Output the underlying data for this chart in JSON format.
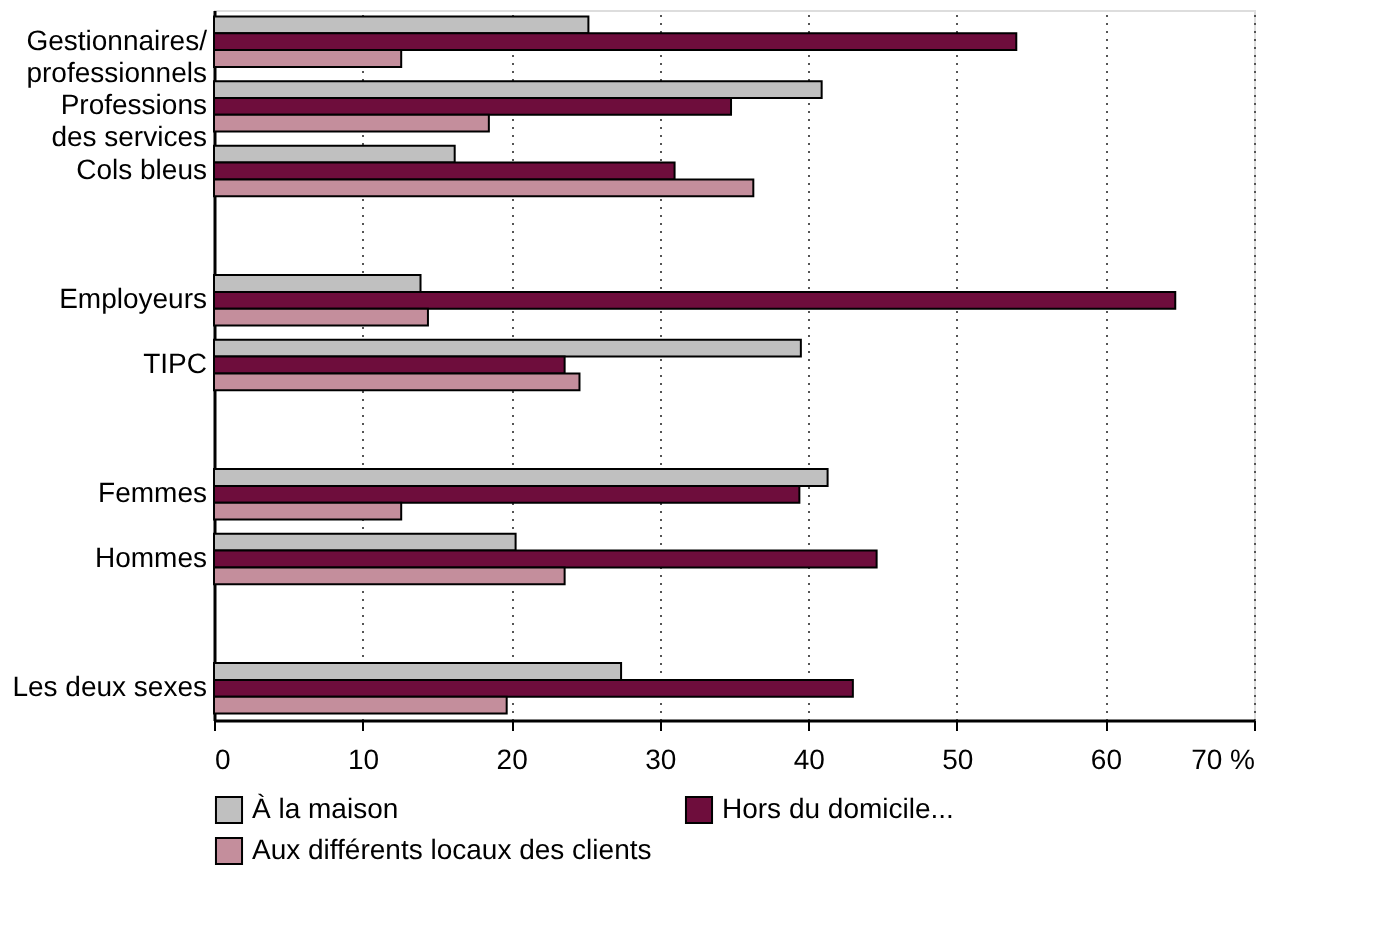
{
  "chart_data": {
    "type": "bar",
    "orientation": "horizontal",
    "categories": [
      "Gestionnaires/\nprofessionnels",
      "Professions\ndes services",
      "Cols bleus",
      null,
      "Employeurs",
      "TIPC",
      null,
      "Femmes",
      "Hommes",
      null,
      "Les deux sexes"
    ],
    "series": [
      {
        "name": "À la maison",
        "color": "#c0c0c0",
        "values": [
          25.2,
          40.9,
          16.2,
          null,
          13.9,
          39.5,
          null,
          41.3,
          20.3,
          null,
          27.4
        ]
      },
      {
        "name": "Hors du domicile...",
        "color": "#6e0d3c",
        "values": [
          54.0,
          34.8,
          31.0,
          null,
          64.7,
          23.6,
          null,
          39.4,
          44.6,
          null,
          43.0
        ]
      },
      {
        "name": "Aux différents locaux des clients",
        "color": "#c48e9c",
        "values": [
          12.6,
          18.5,
          36.3,
          null,
          14.4,
          24.6,
          null,
          12.6,
          23.6,
          null,
          19.7
        ]
      }
    ],
    "xlim": [
      0,
      70
    ],
    "xticks": [
      0,
      10,
      20,
      30,
      40,
      50,
      60,
      {
        "value": 70,
        "label": "70 %"
      }
    ],
    "grid": "x",
    "legend": "bottom"
  }
}
